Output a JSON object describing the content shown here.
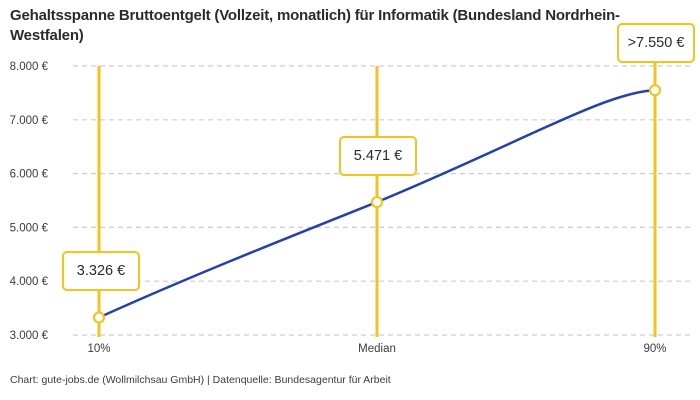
{
  "title": "Gehaltsspanne Bruttoentgelt (Vollzeit, monatlich) für Informatik (Bundesland Nordrhein-Westfalen)",
  "footer": "Chart: gute-jobs.de (Wollmilchsau GmbH) | Datenquelle: Bundesagentur für Arbeit",
  "colors": {
    "accent_yellow": "#F6C21D",
    "line_blue": "#2440AB",
    "grid_gray": "#CDCDCD",
    "text_dark": "#2B2B2B",
    "text_axis": "#3C3C3C"
  },
  "chart_data": {
    "type": "line",
    "title": "Gehaltsspanne Bruttoentgelt (Vollzeit, monatlich) für Informatik (Bundesland Nordrhein-Westfalen)",
    "categories": [
      "10%",
      "Median",
      "90%"
    ],
    "values": [
      3326,
      5471,
      7550
    ],
    "point_labels": [
      "3.326 €",
      "5.471 €",
      ">7.550 €"
    ],
    "yticks": [
      {
        "value": 8000,
        "label": "8.000 €"
      },
      {
        "value": 7000,
        "label": "7.000 €"
      },
      {
        "value": 6000,
        "label": "6.000 €"
      },
      {
        "value": 5000,
        "label": "5.000 €"
      },
      {
        "value": 4000,
        "label": "4.000 €"
      },
      {
        "value": 3000,
        "label": "3.000 €"
      }
    ],
    "ylim": [
      3000,
      8000
    ],
    "grid": "horizontal-dashed",
    "legend": "none",
    "marker_style": "vertical-yellow-lines-with-open-circles",
    "source": "Chart: gute-jobs.de (Wollmilchsau GmbH) | Datenquelle: Bundesagentur für Arbeit"
  }
}
